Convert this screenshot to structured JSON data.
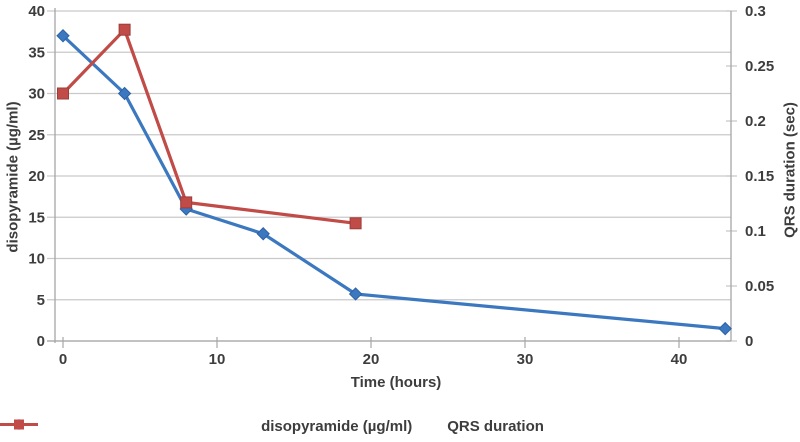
{
  "chart_data": {
    "type": "line",
    "title": "",
    "xlabel": "Time (hours)",
    "ylabel_left": "disopyramide (µg/ml)",
    "ylabel_right": "QRS duration (sec)",
    "xlim": [
      0,
      43.5
    ],
    "ylim_left": [
      0,
      40
    ],
    "ylim_right": [
      0,
      0.3
    ],
    "grid": "horizontal",
    "legend_position": "bottom",
    "xticks": {
      "values": [
        0,
        10,
        20,
        30,
        40
      ],
      "labels": [
        "0",
        "10",
        "20",
        "30",
        "40"
      ]
    },
    "yticks_left": {
      "values": [
        0,
        5,
        10,
        15,
        20,
        25,
        30,
        35,
        40
      ],
      "labels": [
        "0",
        "5",
        "10",
        "15",
        "20",
        "25",
        "30",
        "35",
        "40"
      ]
    },
    "yticks_right": {
      "values": [
        0,
        0.05,
        0.1,
        0.15,
        0.2,
        0.25,
        0.3
      ],
      "labels": [
        "0",
        "0.05",
        "0.1",
        "0.15",
        "0.2",
        "0.25",
        "0.3"
      ]
    },
    "series": [
      {
        "name": "disopyramide (µg/ml)",
        "axis": "left",
        "color": "#3b78c0",
        "edge": "#2d62a3",
        "marker": "diamond",
        "x": [
          0,
          4,
          8,
          13,
          19,
          43
        ],
        "y": [
          37,
          30,
          16,
          13,
          5.7,
          1.5
        ]
      },
      {
        "name": "QRS duration",
        "axis": "right",
        "color": "#c04b47",
        "edge": "#9e3d3a",
        "marker": "square",
        "x": [
          0,
          4,
          8,
          19
        ],
        "y": [
          0.225,
          0.283,
          0.126,
          0.107
        ]
      }
    ],
    "colors": {
      "gridline": "#c9c9c9",
      "axis": "#a6a6a6",
      "text": "#3d3d3d"
    }
  }
}
